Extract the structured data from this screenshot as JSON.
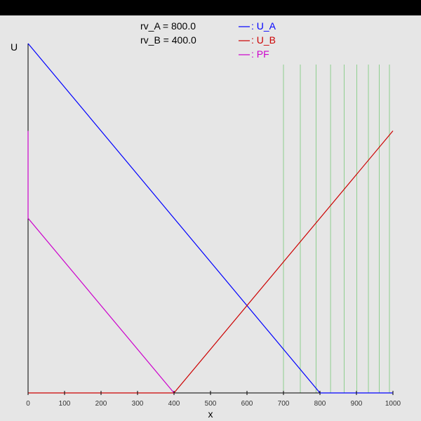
{
  "chart_data": {
    "type": "line",
    "xlabel": "x",
    "ylabel": "U",
    "xlim": [
      0,
      1000
    ],
    "x_ticks": [
      "0",
      "100",
      "200",
      "300",
      "400",
      "500",
      "600",
      "700",
      "800",
      "900",
      "1000"
    ],
    "params": [
      {
        "text": "rv_A = 800.0"
      },
      {
        "text": "rv_B = 400.0"
      }
    ],
    "legend": {
      "placement": "top-center",
      "entries": [
        {
          "label": ": U_A",
          "color": "#0000ff"
        },
        {
          "label": ": U_B",
          "color": "#cc0000"
        },
        {
          "label": ": PF",
          "color": "#cc00cc"
        }
      ]
    },
    "series": [
      {
        "key": "U_A",
        "color": "#0000ff",
        "points": [
          [
            0,
            1.0
          ],
          [
            800,
            0
          ],
          [
            1000,
            0
          ]
        ]
      },
      {
        "key": "U_B",
        "color": "#cc0000",
        "points": [
          [
            0,
            0
          ],
          [
            400,
            0
          ],
          [
            1000,
            0.75
          ]
        ]
      },
      {
        "key": "PF",
        "color": "#cc00cc",
        "points": [
          [
            0,
            0.75
          ],
          [
            0,
            0.5
          ],
          [
            400,
            0
          ]
        ]
      }
    ],
    "green_band": {
      "color": "#00aa00",
      "x_start": 700,
      "x_end": 1000
    }
  }
}
